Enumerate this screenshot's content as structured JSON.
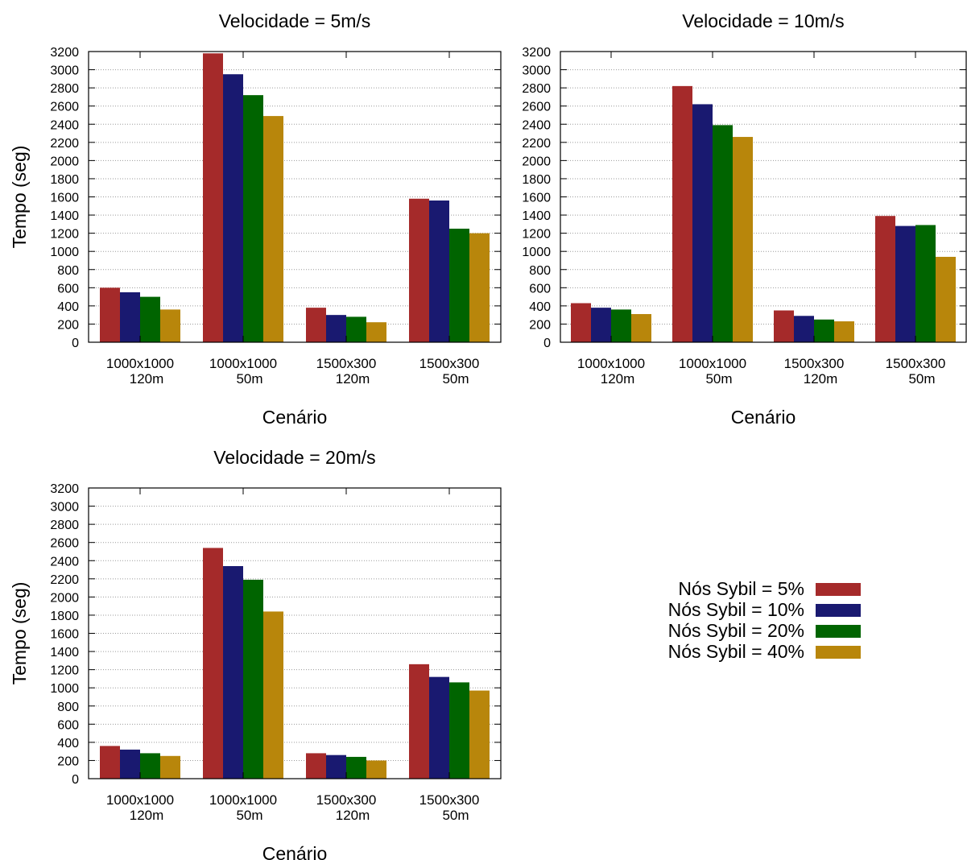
{
  "legend": {
    "placement": "right-middle",
    "entries": [
      "Nós Sybil =  5%",
      "Nós Sybil = 10%",
      "Nós Sybil = 20%",
      "Nós Sybil = 40%"
    ]
  },
  "colors": [
    "#a52a2a",
    "#191970",
    "#006400",
    "#b8860b"
  ],
  "chart_data": [
    {
      "type": "bar",
      "title": "Velocidade = 5m/s",
      "xlabel": "Cenário",
      "ylabel": "Tempo (seg)",
      "ylim": [
        0,
        3200
      ],
      "yticks": [
        "0",
        "200",
        "400",
        "600",
        "800",
        "1000",
        "1200",
        "1400",
        "1600",
        "1800",
        "2000",
        "2200",
        "2400",
        "2600",
        "2800",
        "3000",
        "3200"
      ],
      "grid": true,
      "categories": [
        [
          "1000x1000",
          "120m"
        ],
        [
          "1000x1000",
          "50m"
        ],
        [
          "1500x300",
          "120m"
        ],
        [
          "1500x300",
          "50m"
        ]
      ],
      "series": [
        {
          "name": "Nós Sybil =  5%",
          "values": [
            600,
            3180,
            380,
            1580
          ]
        },
        {
          "name": "Nós Sybil = 10%",
          "values": [
            550,
            2950,
            300,
            1560
          ]
        },
        {
          "name": "Nós Sybil = 20%",
          "values": [
            500,
            2720,
            280,
            1250
          ]
        },
        {
          "name": "Nós Sybil = 40%",
          "values": [
            360,
            2490,
            220,
            1200
          ]
        }
      ]
    },
    {
      "type": "bar",
      "title": "Velocidade = 10m/s",
      "xlabel": "Cenário",
      "ylabel": "",
      "ylim": [
        0,
        3200
      ],
      "yticks": [
        "0",
        "200",
        "400",
        "600",
        "800",
        "1000",
        "1200",
        "1400",
        "1600",
        "1800",
        "2000",
        "2200",
        "2400",
        "2600",
        "2800",
        "3000",
        "3200"
      ],
      "grid": true,
      "categories": [
        [
          "1000x1000",
          "120m"
        ],
        [
          "1000x1000",
          "50m"
        ],
        [
          "1500x300",
          "120m"
        ],
        [
          "1500x300",
          "50m"
        ]
      ],
      "series": [
        {
          "name": "Nós Sybil =  5%",
          "values": [
            430,
            2820,
            350,
            1390
          ]
        },
        {
          "name": "Nós Sybil = 10%",
          "values": [
            380,
            2620,
            290,
            1280
          ]
        },
        {
          "name": "Nós Sybil = 20%",
          "values": [
            360,
            2390,
            250,
            1290
          ]
        },
        {
          "name": "Nós Sybil = 40%",
          "values": [
            310,
            2260,
            230,
            940
          ]
        }
      ]
    },
    {
      "type": "bar",
      "title": "Velocidade = 20m/s",
      "xlabel": "Cenário",
      "ylabel": "Tempo (seg)",
      "ylim": [
        0,
        3200
      ],
      "yticks": [
        "0",
        "200",
        "400",
        "600",
        "800",
        "1000",
        "1200",
        "1400",
        "1600",
        "1800",
        "2000",
        "2200",
        "2400",
        "2600",
        "2800",
        "3000",
        "3200"
      ],
      "grid": true,
      "categories": [
        [
          "1000x1000",
          "120m"
        ],
        [
          "1000x1000",
          "50m"
        ],
        [
          "1500x300",
          "120m"
        ],
        [
          "1500x300",
          "50m"
        ]
      ],
      "series": [
        {
          "name": "Nós Sybil =  5%",
          "values": [
            360,
            2540,
            280,
            1260
          ]
        },
        {
          "name": "Nós Sybil = 10%",
          "values": [
            320,
            2340,
            260,
            1120
          ]
        },
        {
          "name": "Nós Sybil = 20%",
          "values": [
            280,
            2190,
            240,
            1060
          ]
        },
        {
          "name": "Nós Sybil = 40%",
          "values": [
            250,
            1840,
            200,
            970
          ]
        }
      ]
    }
  ]
}
